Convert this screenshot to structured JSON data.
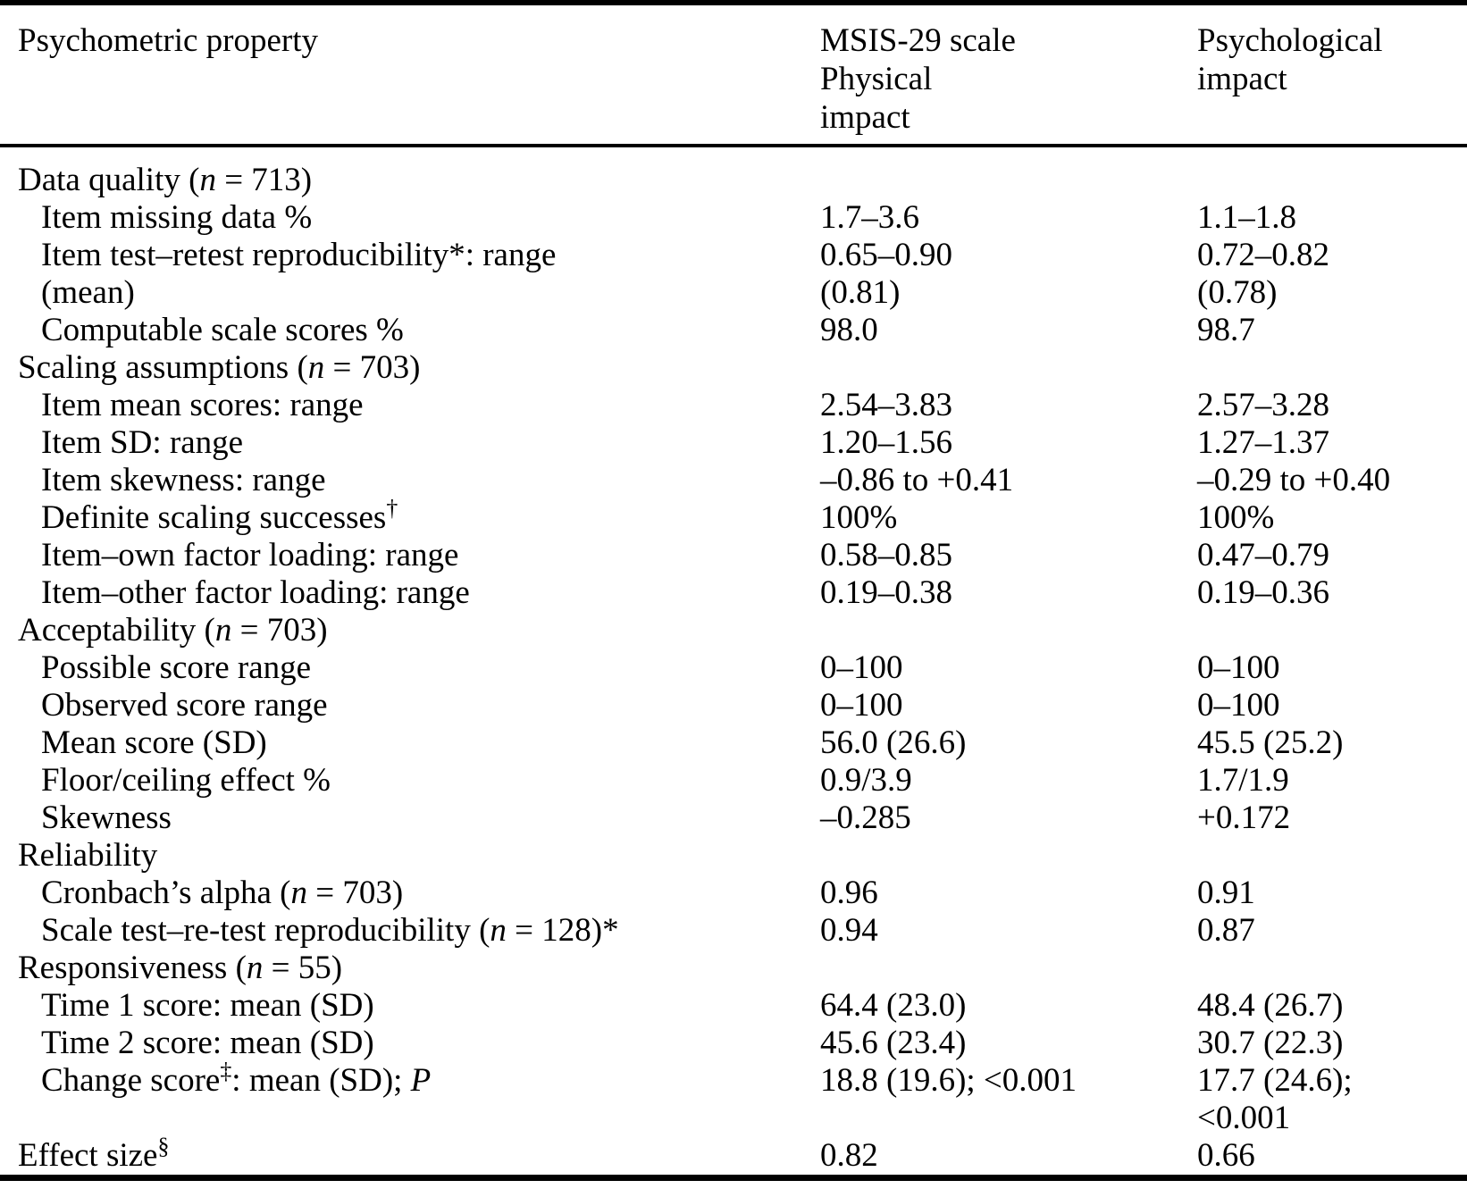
{
  "page": {
    "background": "#ffffff",
    "text_color": "#000000"
  },
  "table": {
    "header": {
      "col1": "Psychometric property",
      "col2": "MSIS-29 scale\nPhysical\nimpact",
      "col3": "Psychological\nimpact"
    },
    "rows": [
      {
        "indent": 0,
        "label": [
          {
            "t": "Data quality ("
          },
          {
            "t": "n",
            "i": true
          },
          {
            "t": " = 713)"
          }
        ],
        "v1": "",
        "v2": ""
      },
      {
        "indent": 1,
        "label": [
          {
            "t": "Item missing data %"
          }
        ],
        "v1": "1.7–3.6",
        "v2": "1.1–1.8"
      },
      {
        "indent": 1,
        "label": [
          {
            "t": "Item test–retest reproducibility*: range"
          }
        ],
        "v1": "0.65–0.90",
        "v2": "0.72–0.82"
      },
      {
        "indent": 1,
        "label": [
          {
            "t": "(mean)"
          }
        ],
        "v1": "(0.81)",
        "v2": "(0.78)"
      },
      {
        "indent": 1,
        "label": [
          {
            "t": "Computable scale scores %"
          }
        ],
        "v1": "98.0",
        "v2": "98.7"
      },
      {
        "indent": 0,
        "label": [
          {
            "t": "Scaling assumptions ("
          },
          {
            "t": "n",
            "i": true
          },
          {
            "t": " = 703)"
          }
        ],
        "v1": "",
        "v2": ""
      },
      {
        "indent": 1,
        "label": [
          {
            "t": "Item mean scores: range"
          }
        ],
        "v1": "2.54–3.83",
        "v2": "2.57–3.28"
      },
      {
        "indent": 1,
        "label": [
          {
            "t": "Item SD: range"
          }
        ],
        "v1": "1.20–1.56",
        "v2": "1.27–1.37"
      },
      {
        "indent": 1,
        "label": [
          {
            "t": "Item skewness: range"
          }
        ],
        "v1": "–0.86 to +0.41",
        "v2": "–0.29 to +0.40"
      },
      {
        "indent": 1,
        "label": [
          {
            "t": "Definite scaling successes"
          },
          {
            "t": "†",
            "sup": true
          }
        ],
        "v1": "100%",
        "v2": "100%"
      },
      {
        "indent": 1,
        "label": [
          {
            "t": "Item–own factor loading: range"
          }
        ],
        "v1": "0.58–0.85",
        "v2": "0.47–0.79"
      },
      {
        "indent": 1,
        "label": [
          {
            "t": "Item–other factor loading: range"
          }
        ],
        "v1": "0.19–0.38",
        "v2": "0.19–0.36"
      },
      {
        "indent": 0,
        "label": [
          {
            "t": "Acceptability ("
          },
          {
            "t": "n",
            "i": true
          },
          {
            "t": " = 703)"
          }
        ],
        "v1": "",
        "v2": ""
      },
      {
        "indent": 1,
        "label": [
          {
            "t": "Possible score range"
          }
        ],
        "v1": "0–100",
        "v2": "0–100"
      },
      {
        "indent": 1,
        "label": [
          {
            "t": "Observed score range"
          }
        ],
        "v1": "0–100",
        "v2": "0–100"
      },
      {
        "indent": 1,
        "label": [
          {
            "t": "Mean score (SD)"
          }
        ],
        "v1": "56.0 (26.6)",
        "v2": "45.5 (25.2)"
      },
      {
        "indent": 1,
        "label": [
          {
            "t": "Floor/ceiling effect %"
          }
        ],
        "v1": "0.9/3.9",
        "v2": "1.7/1.9"
      },
      {
        "indent": 1,
        "label": [
          {
            "t": "Skewness"
          }
        ],
        "v1": "–0.285",
        "v2": "+0.172"
      },
      {
        "indent": 0,
        "label": [
          {
            "t": "Reliability"
          }
        ],
        "v1": "",
        "v2": ""
      },
      {
        "indent": 1,
        "label": [
          {
            "t": "Cronbach’s alpha ("
          },
          {
            "t": "n",
            "i": true
          },
          {
            "t": " = 703)"
          }
        ],
        "v1": "0.96",
        "v2": "0.91"
      },
      {
        "indent": 1,
        "label": [
          {
            "t": "Scale test–re-test reproducibility ("
          },
          {
            "t": "n",
            "i": true
          },
          {
            "t": " = 128)*"
          }
        ],
        "v1": "0.94",
        "v2": "0.87"
      },
      {
        "indent": 0,
        "label": [
          {
            "t": "Responsiveness ("
          },
          {
            "t": "n",
            "i": true
          },
          {
            "t": " = 55)"
          }
        ],
        "v1": "",
        "v2": ""
      },
      {
        "indent": 1,
        "label": [
          {
            "t": "Time 1 score: mean (SD)"
          }
        ],
        "v1": "64.4 (23.0)",
        "v2": "48.4 (26.7)"
      },
      {
        "indent": 1,
        "label": [
          {
            "t": "Time 2 score: mean (SD)"
          }
        ],
        "v1": "45.6 (23.4)",
        "v2": "30.7 (22.3)"
      },
      {
        "indent": 1,
        "label": [
          {
            "t": "Change score"
          },
          {
            "t": "‡",
            "sup": true
          },
          {
            "t": ": mean (SD); "
          },
          {
            "t": "P",
            "i": true
          }
        ],
        "v1": "18.8 (19.6); <0.001",
        "v2": "17.7 (24.6);\n<0.001"
      },
      {
        "indent": 0,
        "label": [
          {
            "t": "Effect size"
          },
          {
            "t": "§",
            "sup": true
          }
        ],
        "v1": "0.82",
        "v2": "0.66"
      }
    ]
  }
}
